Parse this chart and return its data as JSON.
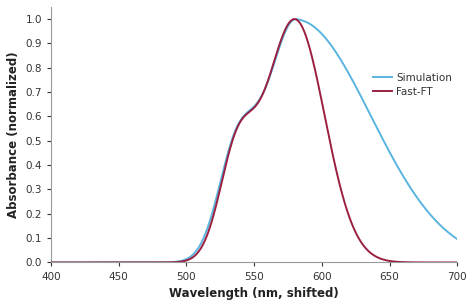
{
  "title": "",
  "xlabel": "Wavelength (nm, shifted)",
  "ylabel": "Absorbance (normalized)",
  "xlim": [
    400,
    700
  ],
  "ylim": [
    0,
    1.05
  ],
  "xticks": [
    400,
    450,
    500,
    550,
    600,
    650,
    700
  ],
  "yticks": [
    0.0,
    0.1,
    0.2,
    0.3,
    0.4,
    0.5,
    0.6,
    0.7,
    0.8,
    0.9,
    1.0
  ],
  "simulation_color": "#5ab4e0",
  "fastft_color": "#9b2040",
  "legend_labels": [
    "Simulation",
    "Fast-FT"
  ],
  "background_color": "#ffffff",
  "linewidth": 1.4
}
